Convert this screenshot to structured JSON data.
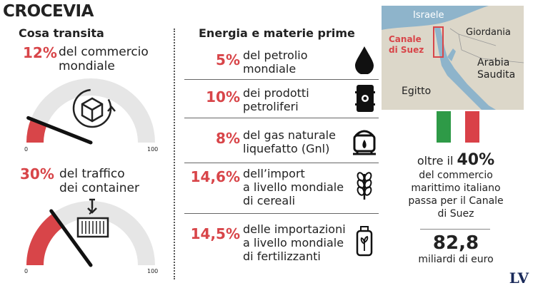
{
  "title": "CROCEVIA",
  "left": {
    "heading": "Cosa transita",
    "commerce": {
      "pct": "12%",
      "label_line1": "del commercio",
      "label_line2": "mondiale",
      "value": 12,
      "gauge_min": "0",
      "gauge_max": "100",
      "icon": "box-cycle-icon"
    },
    "container": {
      "pct": "30%",
      "label_line1": "del traffico",
      "label_line2": "dei container",
      "value": 30,
      "gauge_min": "0",
      "gauge_max": "100",
      "icon": "crane-container-icon"
    }
  },
  "middle": {
    "heading": "Energia e materie prime",
    "rows": [
      {
        "pct": "5%",
        "line1": "del petrolio",
        "line2": "mondiale",
        "line3": "",
        "icon": "oil-drop-icon"
      },
      {
        "pct": "10%",
        "line1": "dei prodotti",
        "line2": "petroliferi",
        "line3": "",
        "icon": "oil-barrel-icon"
      },
      {
        "pct": "8%",
        "line1": "del gas naturale",
        "line2": "liquefatto (Gnl)",
        "line3": "",
        "icon": "gas-tank-icon"
      },
      {
        "pct": "14,6%",
        "line1": "dell’import",
        "line2": "a livello mondiale",
        "line3": "di cereali",
        "icon": "wheat-icon"
      },
      {
        "pct": "14,5%",
        "line1": "delle importazioni",
        "line2": "a livello mondiale",
        "line3": "di fertilizzanti",
        "icon": "fertilizer-bag-icon"
      }
    ]
  },
  "map": {
    "labels": {
      "israele": "Israele",
      "giordania": "Giordania",
      "canale": "Canale\ndi Suez",
      "canale_l1": "Canale",
      "canale_l2": "di Suez",
      "arabia_l1": "Arabia",
      "arabia_l2": "Saudita",
      "egitto": "Egitto"
    }
  },
  "right": {
    "prefix": "oltre il",
    "pct": "40%",
    "line1": "del commercio",
    "line2": "marittimo italiano",
    "line3": "passa per il Canale",
    "line4": "di Suez",
    "value": "82,8",
    "unit": "miliardi di euro"
  },
  "flag_colors": [
    "#2e9a47",
    "#ffffff",
    "#d94148"
  ],
  "accent": "#d84549",
  "logo": "LV"
}
